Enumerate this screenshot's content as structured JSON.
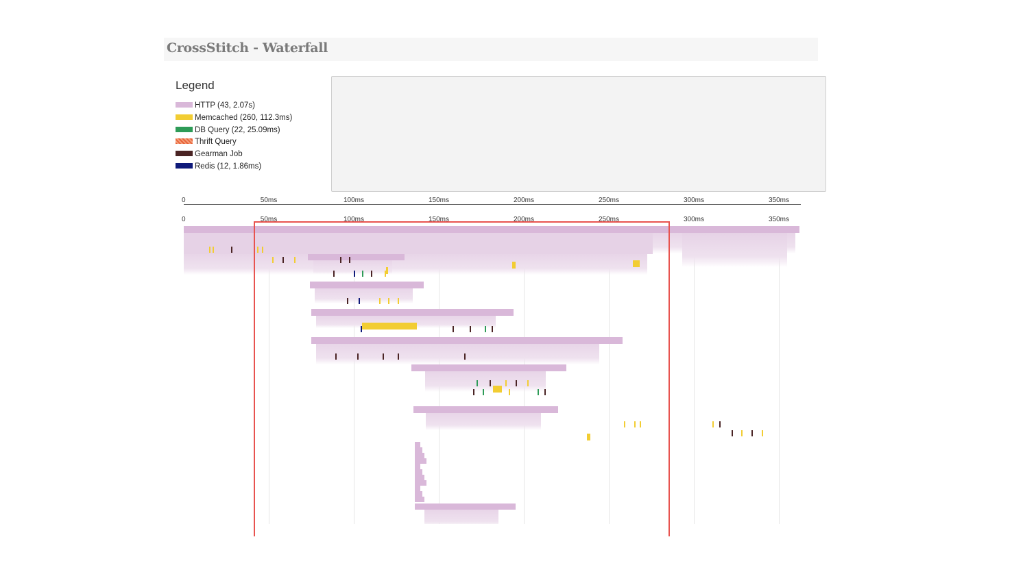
{
  "header": {
    "title": "CrossStitch - Waterfall"
  },
  "legend": {
    "heading": "Legend",
    "items": [
      {
        "label": "HTTP (43, 2.07s)",
        "color": "#d9b8d9",
        "type": "http"
      },
      {
        "label": "Memcached (260, 112.3ms)",
        "color": "#f2cd33",
        "type": "memcached"
      },
      {
        "label": "DB Query (22, 25.09ms)",
        "color": "#2e9b57",
        "type": "db"
      },
      {
        "label": "Thrift Query",
        "color": "#e9643a",
        "type": "thrift"
      },
      {
        "label": "Gearman Job",
        "color": "#4a2424",
        "type": "gearman"
      },
      {
        "label": "Redis (12, 1.86ms)",
        "color": "#0f1a7a",
        "type": "redis"
      }
    ]
  },
  "overview_axis": {
    "labels": [
      "0",
      "50ms",
      "100ms",
      "150ms",
      "200ms",
      "250ms",
      "300ms",
      "350ms"
    ],
    "values_ms": [
      0,
      50,
      100,
      150,
      200,
      250,
      300,
      350
    ]
  },
  "detail_axis": {
    "labels": [
      "0",
      "50ms",
      "100ms",
      "150ms",
      "200ms",
      "250ms",
      "300ms",
      "350ms"
    ],
    "values_ms": [
      0,
      50,
      100,
      150,
      200,
      250,
      300,
      350
    ]
  },
  "waterfall": {
    "range_ms": [
      0,
      362
    ],
    "selection_ms": [
      41,
      286
    ],
    "http_spans": [
      {
        "start": 0,
        "end": 362
      },
      {
        "start": 0,
        "end": 276
      },
      {
        "start": 73,
        "end": 130
      },
      {
        "start": 74,
        "end": 141
      },
      {
        "start": 75,
        "end": 194
      },
      {
        "start": 75,
        "end": 258
      },
      {
        "start": 134,
        "end": 225
      },
      {
        "start": 135,
        "end": 220
      },
      {
        "start": 136,
        "end": 195
      }
    ],
    "ticks": [
      {
        "t": 15,
        "type": "memcached"
      },
      {
        "t": 17,
        "type": "memcached"
      },
      {
        "t": 28,
        "type": "gearman"
      },
      {
        "t": 43,
        "type": "memcached"
      },
      {
        "t": 46,
        "type": "memcached"
      },
      {
        "t": 52,
        "type": "memcached"
      },
      {
        "t": 58,
        "type": "gearman"
      },
      {
        "t": 65,
        "type": "memcached"
      },
      {
        "t": 92,
        "type": "gearman"
      },
      {
        "t": 97,
        "type": "gearman"
      },
      {
        "t": 100,
        "type": "redis"
      },
      {
        "t": 118,
        "type": "memcached"
      },
      {
        "t": 88,
        "type": "gearman"
      },
      {
        "t": 105,
        "type": "db"
      },
      {
        "t": 110,
        "type": "gearman"
      },
      {
        "t": 115,
        "type": "memcached"
      },
      {
        "t": 120,
        "type": "memcached"
      },
      {
        "t": 126,
        "type": "memcached"
      },
      {
        "t": 96,
        "type": "gearman"
      },
      {
        "t": 103,
        "type": "redis"
      },
      {
        "t": 104,
        "type": "redis"
      },
      {
        "t": 158,
        "type": "gearman"
      },
      {
        "t": 168,
        "type": "gearman"
      },
      {
        "t": 177,
        "type": "db"
      },
      {
        "t": 181,
        "type": "gearman"
      },
      {
        "t": 89,
        "type": "gearman"
      },
      {
        "t": 102,
        "type": "gearman"
      },
      {
        "t": 117,
        "type": "gearman"
      },
      {
        "t": 126,
        "type": "gearman"
      },
      {
        "t": 165,
        "type": "gearman"
      },
      {
        "t": 172,
        "type": "db"
      },
      {
        "t": 180,
        "type": "gearman"
      },
      {
        "t": 189,
        "type": "memcached"
      },
      {
        "t": 195,
        "type": "gearman"
      },
      {
        "t": 202,
        "type": "memcached"
      },
      {
        "t": 212,
        "type": "gearman"
      },
      {
        "t": 170,
        "type": "gearman"
      },
      {
        "t": 176,
        "type": "db"
      },
      {
        "t": 191,
        "type": "memcached"
      },
      {
        "t": 208,
        "type": "db"
      },
      {
        "t": 259,
        "type": "memcached"
      },
      {
        "t": 265,
        "type": "memcached"
      },
      {
        "t": 268,
        "type": "memcached"
      },
      {
        "t": 311,
        "type": "memcached"
      },
      {
        "t": 315,
        "type": "gearman"
      },
      {
        "t": 322,
        "type": "gearman"
      },
      {
        "t": 328,
        "type": "memcached"
      },
      {
        "t": 334,
        "type": "gearman"
      },
      {
        "t": 340,
        "type": "memcached"
      }
    ],
    "memcached_blocks": [
      {
        "start": 105,
        "end": 137
      },
      {
        "start": 182,
        "end": 187
      },
      {
        "start": 264,
        "end": 268
      },
      {
        "start": 119,
        "end": 120
      },
      {
        "start": 237,
        "end": 239
      },
      {
        "start": 193,
        "end": 195
      }
    ]
  }
}
